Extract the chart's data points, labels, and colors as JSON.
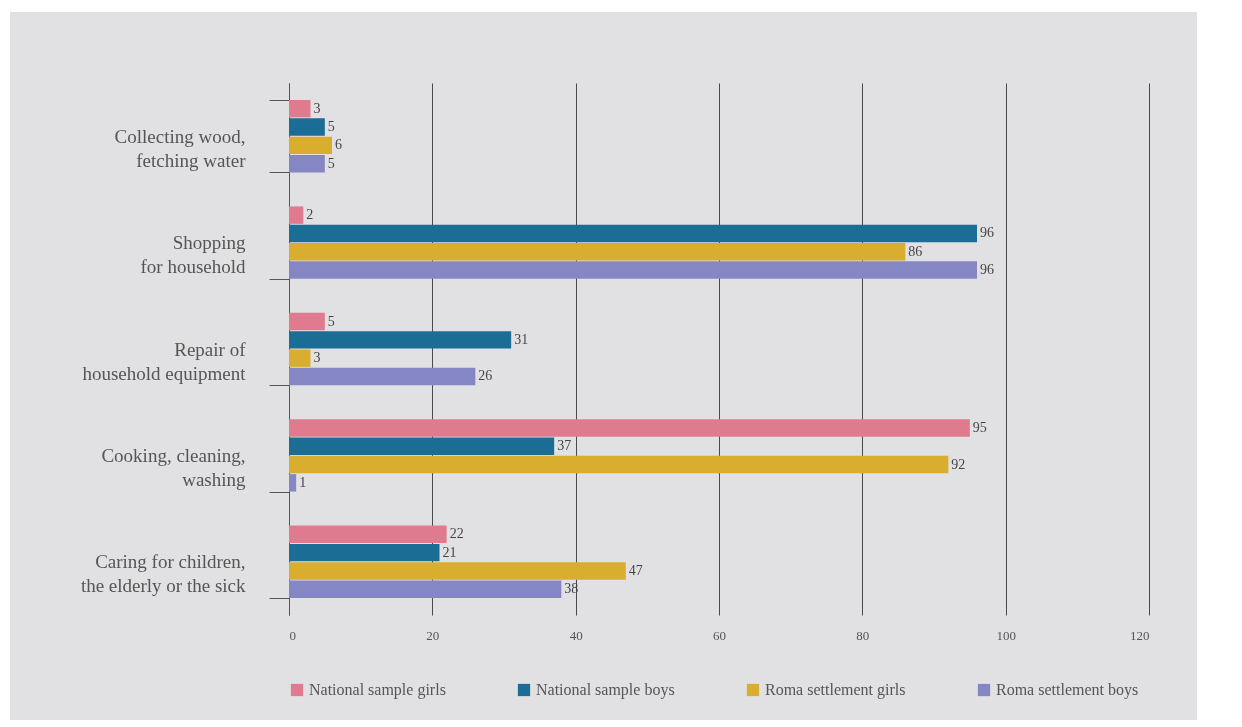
{
  "chart_data": {
    "type": "bar",
    "orientation": "horizontal",
    "categories": [
      "Collecting wood, fetching water",
      "Shopping for household",
      "Repair of household equipment",
      "Cooking, cleaning, washing",
      "Caring for children, the elderly or the sick"
    ],
    "series": [
      {
        "name": "National sample girls",
        "color": "#e07a8f",
        "values": [
          3,
          2,
          5,
          95,
          22
        ]
      },
      {
        "name": "National sample boys",
        "color": "#1b6d96",
        "values": [
          5,
          96,
          31,
          37,
          21
        ]
      },
      {
        "name": "Roma settlement girls",
        "color": "#d9ae2e",
        "values": [
          6,
          86,
          3,
          92,
          47
        ]
      },
      {
        "name": "Roma settlement boys",
        "color": "#8587c4",
        "values": [
          5,
          96,
          26,
          1,
          38
        ]
      }
    ],
    "xlim": [
      0,
      120
    ],
    "xticks": [
      0,
      20,
      40,
      60,
      80,
      100,
      120
    ],
    "grid": "x",
    "legend": "bottom",
    "data_labels": true
  }
}
